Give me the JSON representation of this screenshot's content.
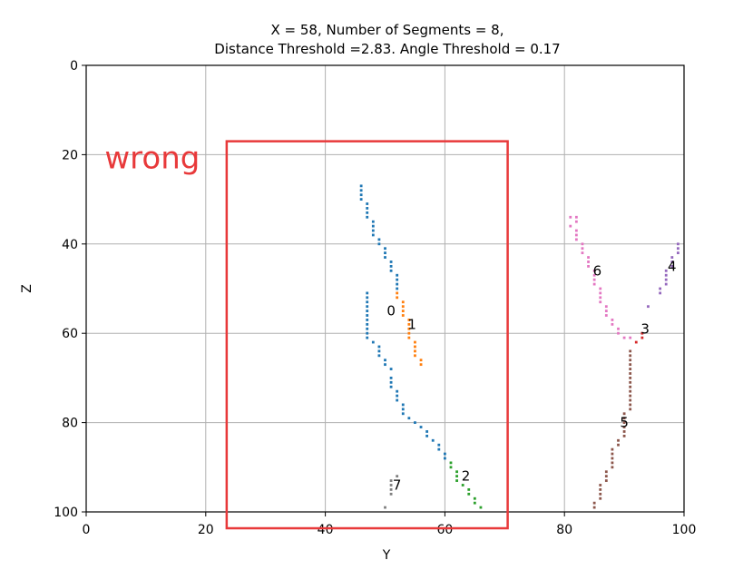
{
  "chart_data": {
    "type": "scatter",
    "title_lines": [
      "X = 58, Number of Segments = 8,",
      "Distance Threshold =2.83. Angle Threshold = 0.17"
    ],
    "xlabel": "Y",
    "ylabel": "Z",
    "xlim": [
      0,
      100
    ],
    "ylim": [
      100,
      0
    ],
    "y_inverted": true,
    "grid": true,
    "x_ticks": [
      0,
      20,
      40,
      60,
      80,
      100
    ],
    "y_ticks": [
      0,
      20,
      40,
      60,
      80,
      100
    ],
    "series": [
      {
        "label": "0",
        "color": "#1f77b4",
        "label_pos": [
          51,
          55
        ],
        "points": [
          [
            46,
            27
          ],
          [
            46,
            28
          ],
          [
            46,
            29
          ],
          [
            46,
            30
          ],
          [
            47,
            31
          ],
          [
            47,
            32
          ],
          [
            47,
            33
          ],
          [
            47,
            34
          ],
          [
            48,
            35
          ],
          [
            48,
            36
          ],
          [
            48,
            37
          ],
          [
            48,
            38
          ],
          [
            49,
            39
          ],
          [
            49,
            40
          ],
          [
            50,
            41
          ],
          [
            50,
            42
          ],
          [
            50,
            43
          ],
          [
            51,
            44
          ],
          [
            51,
            45
          ],
          [
            51,
            46
          ],
          [
            52,
            47
          ],
          [
            52,
            48
          ],
          [
            52,
            49
          ],
          [
            52,
            50
          ],
          [
            47,
            51
          ],
          [
            47,
            52
          ],
          [
            47,
            53
          ],
          [
            47,
            54
          ],
          [
            47,
            55
          ],
          [
            47,
            56
          ],
          [
            47,
            57
          ],
          [
            47,
            58
          ],
          [
            47,
            59
          ],
          [
            47,
            60
          ],
          [
            47,
            61
          ],
          [
            48,
            62
          ],
          [
            49,
            63
          ],
          [
            49,
            64
          ],
          [
            49,
            65
          ],
          [
            50,
            66
          ],
          [
            50,
            67
          ],
          [
            51,
            68
          ],
          [
            51,
            70
          ],
          [
            51,
            71
          ],
          [
            51,
            72
          ],
          [
            52,
            73
          ],
          [
            52,
            74
          ],
          [
            52,
            75
          ],
          [
            53,
            76
          ],
          [
            53,
            77
          ],
          [
            53,
            78
          ],
          [
            54,
            79
          ],
          [
            55,
            80
          ],
          [
            56,
            81
          ],
          [
            57,
            82
          ],
          [
            57,
            83
          ],
          [
            58,
            84
          ],
          [
            59,
            85
          ],
          [
            59,
            86
          ],
          [
            60,
            87
          ],
          [
            60,
            88
          ]
        ]
      },
      {
        "label": "1",
        "color": "#ff7f0e",
        "label_pos": [
          54.5,
          58
        ],
        "points": [
          [
            52,
            51
          ],
          [
            52,
            52
          ],
          [
            53,
            53
          ],
          [
            53,
            54
          ],
          [
            53,
            55
          ],
          [
            53,
            56
          ],
          [
            54,
            57
          ],
          [
            54,
            58
          ],
          [
            54,
            59
          ],
          [
            54,
            60
          ],
          [
            54,
            61
          ],
          [
            55,
            62
          ],
          [
            55,
            63
          ],
          [
            55,
            64
          ],
          [
            55,
            65
          ],
          [
            56,
            66
          ],
          [
            56,
            67
          ]
        ]
      },
      {
        "label": "2",
        "color": "#2ca02c",
        "label_pos": [
          63.5,
          92
        ],
        "points": [
          [
            61,
            89
          ],
          [
            61,
            90
          ],
          [
            62,
            91
          ],
          [
            62,
            92
          ],
          [
            62,
            93
          ],
          [
            63,
            94
          ],
          [
            64,
            95
          ],
          [
            64,
            96
          ],
          [
            65,
            97
          ],
          [
            65,
            98
          ],
          [
            66,
            99
          ]
        ]
      },
      {
        "label": "3",
        "color": "#d62728",
        "label_pos": [
          93.5,
          59
        ],
        "points": [
          [
            93,
            60
          ],
          [
            93,
            61
          ],
          [
            92,
            62
          ]
        ]
      },
      {
        "label": "4",
        "color": "#9467bd",
        "label_pos": [
          98,
          45
        ],
        "points": [
          [
            99,
            40
          ],
          [
            99,
            41
          ],
          [
            99,
            42
          ],
          [
            98,
            43
          ],
          [
            98,
            44
          ],
          [
            98,
            45
          ],
          [
            97,
            46
          ],
          [
            97,
            47
          ],
          [
            97,
            48
          ],
          [
            97,
            49
          ],
          [
            96,
            50
          ],
          [
            96,
            51
          ],
          [
            94,
            54
          ]
        ]
      },
      {
        "label": "5",
        "color": "#8c564b",
        "label_pos": [
          90,
          80
        ],
        "points": [
          [
            91,
            64
          ],
          [
            91,
            65
          ],
          [
            91,
            66
          ],
          [
            91,
            67
          ],
          [
            91,
            68
          ],
          [
            91,
            69
          ],
          [
            91,
            70
          ],
          [
            91,
            71
          ],
          [
            91,
            72
          ],
          [
            91,
            73
          ],
          [
            91,
            74
          ],
          [
            91,
            75
          ],
          [
            91,
            76
          ],
          [
            91,
            77
          ],
          [
            90,
            78
          ],
          [
            90,
            79
          ],
          [
            90,
            80
          ],
          [
            90,
            81
          ],
          [
            90,
            82
          ],
          [
            90,
            83
          ],
          [
            89,
            84
          ],
          [
            89,
            85
          ],
          [
            88,
            86
          ],
          [
            88,
            87
          ],
          [
            88,
            88
          ],
          [
            88,
            89
          ],
          [
            88,
            90
          ],
          [
            87,
            91
          ],
          [
            87,
            92
          ],
          [
            87,
            93
          ],
          [
            86,
            94
          ],
          [
            86,
            95
          ],
          [
            86,
            96
          ],
          [
            86,
            97
          ],
          [
            85,
            98
          ],
          [
            85,
            99
          ]
        ]
      },
      {
        "label": "6",
        "color": "#e377c2",
        "label_pos": [
          85.5,
          46
        ],
        "points": [
          [
            81,
            34
          ],
          [
            82,
            34
          ],
          [
            82,
            35
          ],
          [
            81,
            36
          ],
          [
            82,
            37
          ],
          [
            82,
            38
          ],
          [
            82,
            39
          ],
          [
            83,
            40
          ],
          [
            83,
            41
          ],
          [
            83,
            42
          ],
          [
            84,
            43
          ],
          [
            84,
            44
          ],
          [
            84,
            45
          ],
          [
            85,
            46
          ],
          [
            85,
            47
          ],
          [
            85,
            48
          ],
          [
            85,
            49
          ],
          [
            86,
            50
          ],
          [
            86,
            51
          ],
          [
            86,
            52
          ],
          [
            86,
            53
          ],
          [
            87,
            54
          ],
          [
            87,
            55
          ],
          [
            87,
            56
          ],
          [
            88,
            57
          ],
          [
            88,
            58
          ],
          [
            89,
            59
          ],
          [
            89,
            60
          ],
          [
            90,
            61
          ],
          [
            91,
            61
          ]
        ]
      },
      {
        "label": "7",
        "color": "#7f7f7f",
        "label_pos": [
          52,
          94
        ],
        "points": [
          [
            52,
            92
          ],
          [
            51,
            93
          ],
          [
            51,
            94
          ],
          [
            51,
            95
          ],
          [
            51,
            96
          ],
          [
            50,
            99
          ]
        ]
      }
    ],
    "annotation": {
      "text": "wrong",
      "color": "#e8393a",
      "box": {
        "y_from": 23.5,
        "y_to": 70.5,
        "z_from": 17,
        "z_to": 100
      },
      "text_pos": [
        4,
        20
      ]
    }
  }
}
